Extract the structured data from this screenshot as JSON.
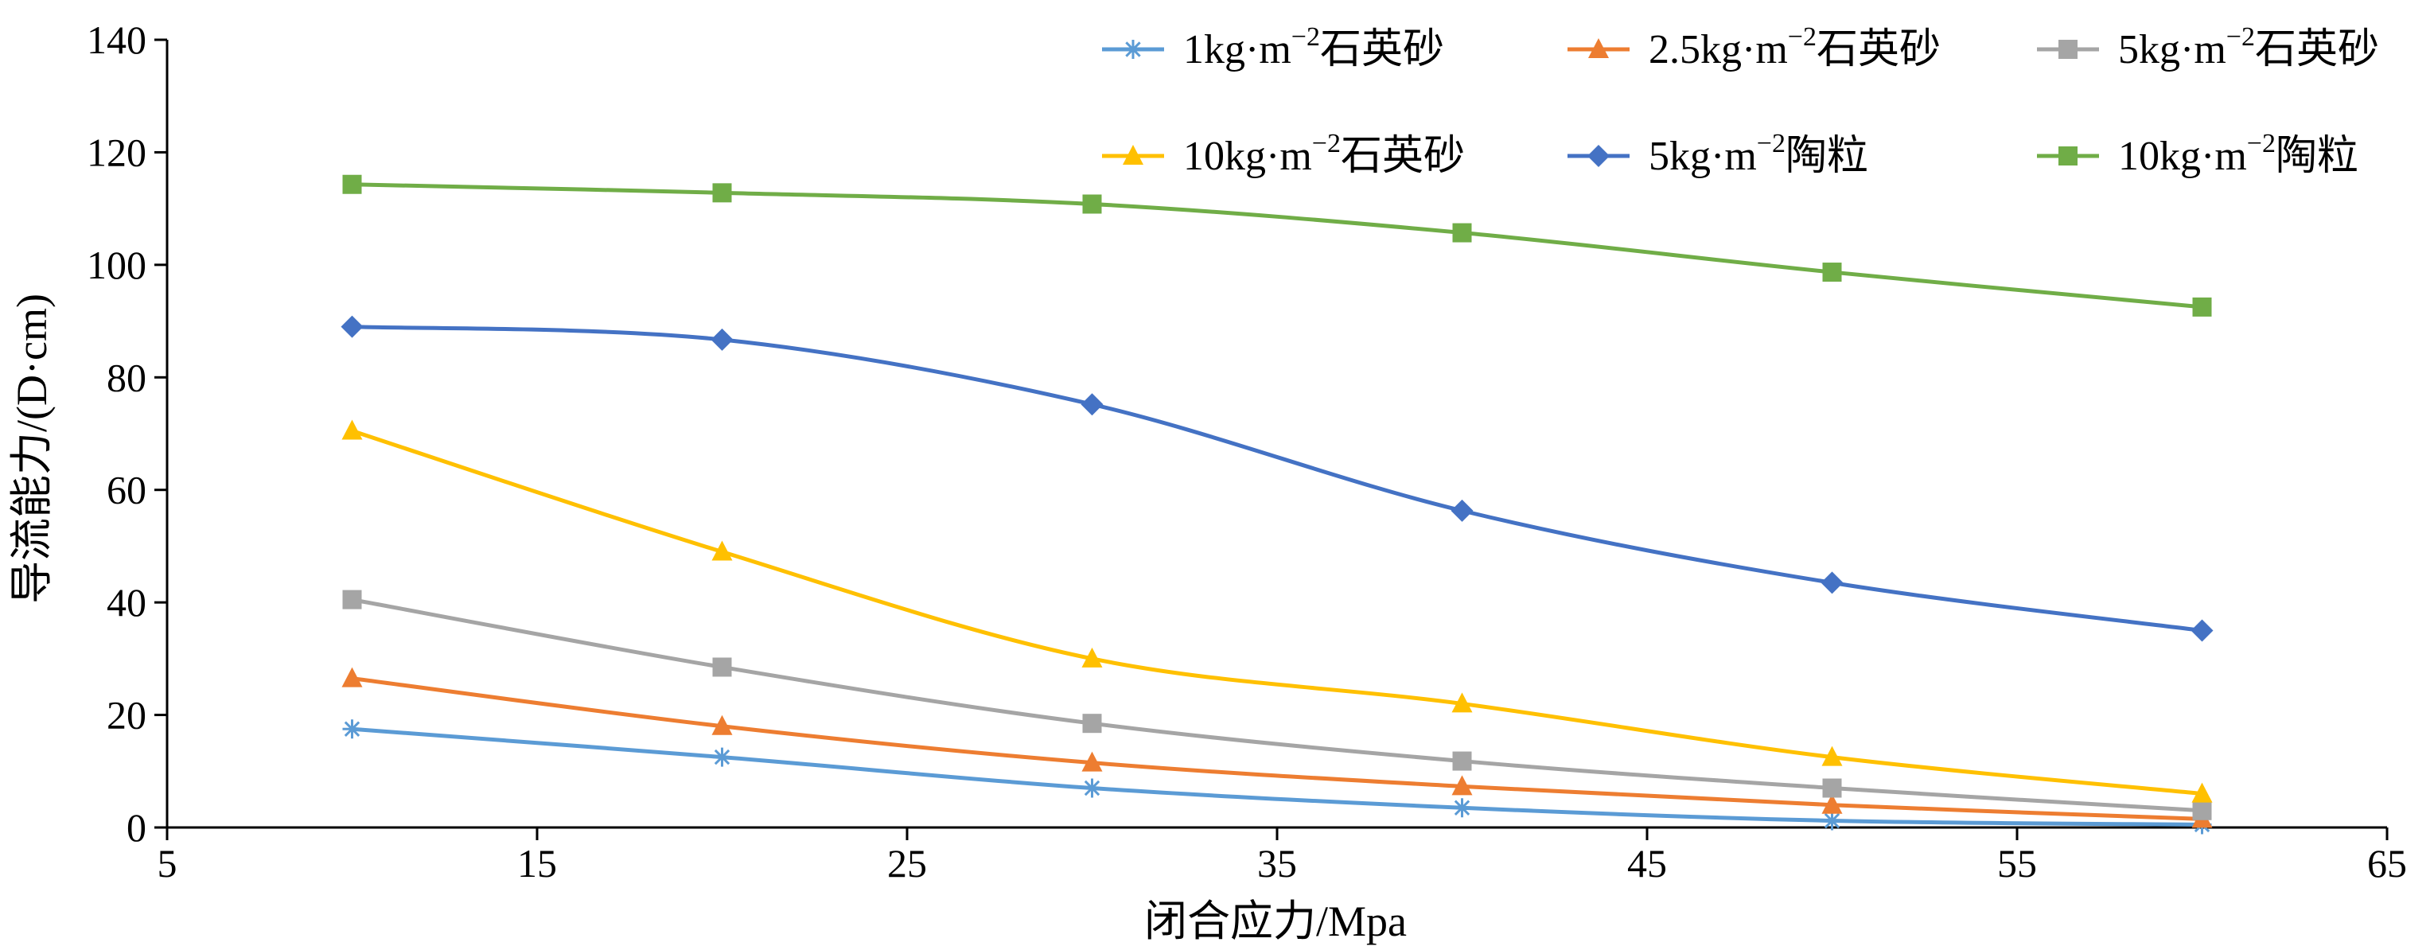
{
  "chart_data": {
    "type": "line",
    "xlabel": "闭合应力/Mpa",
    "ylabel": "导流能力/(D·cm)",
    "xlim": [
      5,
      65
    ],
    "ylim": [
      0,
      140
    ],
    "x_ticks": [
      "5",
      "15",
      "25",
      "35",
      "45",
      "55",
      "65"
    ],
    "y_ticks": [
      "0",
      "20",
      "40",
      "60",
      "80",
      "100",
      "120",
      "140"
    ],
    "grid": false,
    "legend_position": "top",
    "x": [
      10,
      20,
      30,
      40,
      50,
      60
    ],
    "series": [
      {
        "name_main": "1kg·m",
        "name_sup": "−2",
        "name_tail": "石英砂",
        "color": "#5B9BD5",
        "marker": "asterisk",
        "values": [
          17.5,
          12.5,
          7,
          3.5,
          1.2,
          0.5
        ]
      },
      {
        "name_main": "2.5kg·m",
        "name_sup": "−2",
        "name_tail": "石英砂",
        "color": "#ED7D31",
        "marker": "triangle",
        "values": [
          26.5,
          18,
          11.5,
          7.3,
          4,
          1.5
        ]
      },
      {
        "name_main": "5kg·m",
        "name_sup": "−2",
        "name_tail": "石英砂",
        "color": "#A5A5A5",
        "marker": "square",
        "values": [
          40.5,
          28.5,
          18.5,
          11.8,
          7,
          3
        ]
      },
      {
        "name_main": "10kg·m",
        "name_sup": "−2",
        "name_tail": "石英砂",
        "color": "#FFC000",
        "marker": "triangle",
        "values": [
          70.5,
          49,
          30,
          22,
          12.5,
          6
        ]
      },
      {
        "name_main": "5kg·m",
        "name_sup": "−2",
        "name_tail": "陶粒",
        "color": "#4472C4",
        "marker": "diamond",
        "values": [
          89,
          86.7,
          75.2,
          56.3,
          43.5,
          35
        ]
      },
      {
        "name_main": "10kg·m",
        "name_sup": "−2",
        "name_tail": "陶粒",
        "color": "#70AD47",
        "marker": "square",
        "values": [
          114.3,
          112.8,
          110.8,
          105.7,
          98.7,
          92.5
        ]
      }
    ]
  }
}
